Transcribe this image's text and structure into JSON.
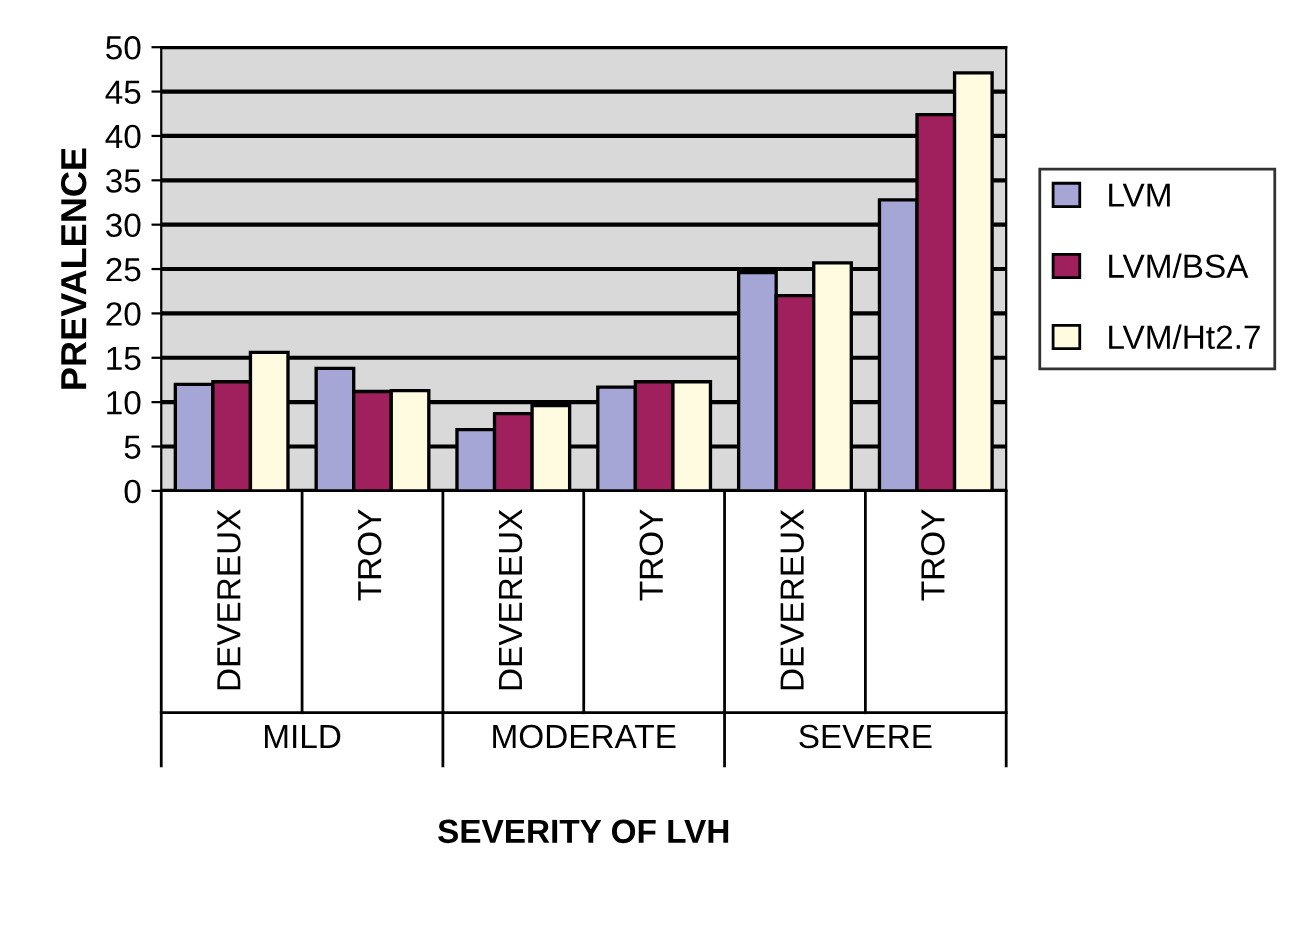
{
  "chart_data": {
    "type": "bar",
    "xlabel": "SEVERITY OF LVH",
    "ylabel": "PREVALENCE",
    "categories": [
      "DEVEREUX",
      "TROY",
      "DEVEREUX",
      "TROY",
      "DEVEREUX",
      "TROY"
    ],
    "series": [
      {
        "name": "LVM",
        "color": "#a6a6d6",
        "values": [
          12.0,
          13.8,
          6.9,
          11.7,
          24.6,
          32.8
        ]
      },
      {
        "name": "LVM/BSA",
        "color": "#a0205e",
        "values": [
          12.3,
          11.2,
          8.7,
          12.3,
          22.0,
          42.4
        ]
      },
      {
        "name": "LVM/Ht2.7",
        "color": "#fffbe0",
        "values": [
          15.6,
          11.3,
          9.6,
          12.3,
          25.7,
          47.1
        ]
      }
    ],
    "annotations": [
      "MILD",
      "MODERATE",
      "SEVERE"
    ],
    "ylim": [
      0,
      50
    ],
    "yticks": [
      0,
      5,
      10,
      15,
      20,
      25,
      30,
      35,
      40,
      45,
      50
    ],
    "grid": "y",
    "legend": "right"
  }
}
